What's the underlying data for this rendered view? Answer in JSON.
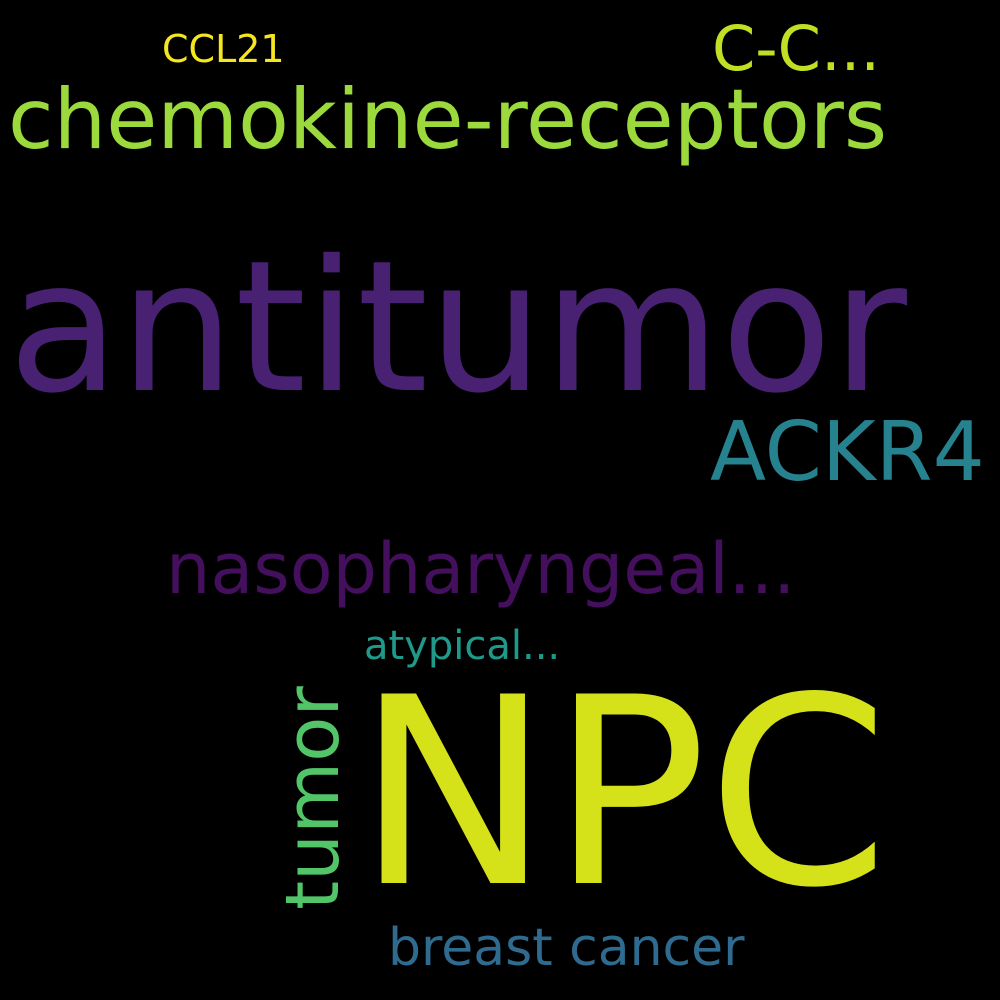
{
  "words": {
    "antitumor": {
      "text": "antitumor",
      "color": "#482173"
    },
    "npc": {
      "text": "NPC",
      "color": "#d5e21a"
    },
    "chemokine_receptors": {
      "text": "chemokine-receptors",
      "color": "#9bd93c"
    },
    "ackr4": {
      "text": "ACKR4",
      "color": "#26828e"
    },
    "nasopharyngeal": {
      "text": "nasopharyngeal...",
      "color": "#440f5c"
    },
    "tumor": {
      "text": "tumor",
      "color": "#52c569"
    },
    "cc": {
      "text": "C-C...",
      "color": "#c2df23"
    },
    "breast_cancer": {
      "text": "breast cancer",
      "color": "#2f6b8e"
    },
    "atypical": {
      "text": "atypical...",
      "color": "#1f9a8a"
    },
    "ccl21": {
      "text": "CCL21",
      "color": "#f5e61f"
    }
  }
}
